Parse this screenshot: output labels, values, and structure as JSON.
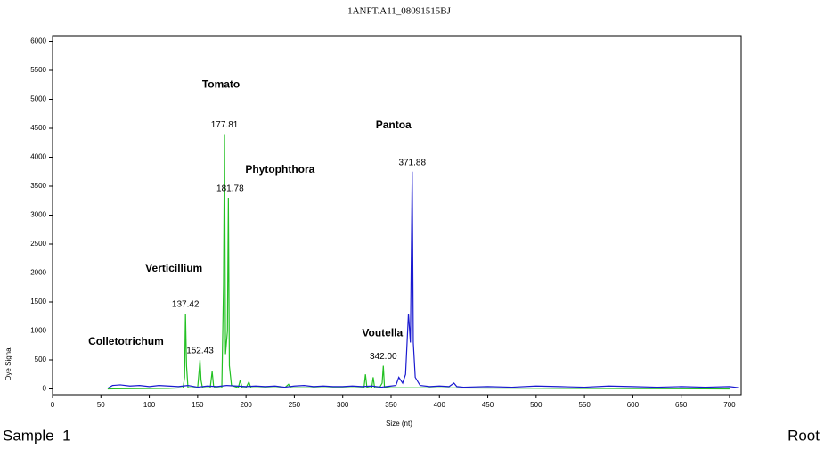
{
  "chart_data": {
    "type": "line",
    "title": "1ANFT.A11_08091515BJ",
    "xlabel": "Size (nt)",
    "ylabel": "Dye Signal",
    "xlim": [
      0,
      712
    ],
    "ylim": [
      -100,
      6100
    ],
    "xticks": [
      0,
      50,
      100,
      150,
      200,
      250,
      300,
      350,
      400,
      450,
      500,
      550,
      600,
      650,
      700
    ],
    "yticks": [
      0,
      500,
      1000,
      1500,
      2000,
      2500,
      3000,
      3500,
      4000,
      4500,
      5000,
      5500,
      6000
    ],
    "series": [
      {
        "color": "#22c022",
        "x": [
          57,
          120,
          135,
          136.5,
          137.42,
          138.5,
          140,
          150,
          151.5,
          152.43,
          153.5,
          155,
          163,
          165,
          166.5,
          168,
          175,
          176.8,
          177.81,
          178.8,
          180.8,
          181.78,
          182.8,
          185,
          192,
          194,
          196,
          200,
          203,
          205,
          207,
          240,
          244,
          246,
          248,
          300,
          320,
          322,
          323.5,
          325,
          328,
          330,
          331.5,
          333,
          338,
          340.8,
          342,
          343.2,
          350,
          360,
          700
        ],
        "values": [
          0,
          10,
          20,
          200,
          1300,
          400,
          20,
          20,
          300,
          500,
          150,
          20,
          20,
          300,
          50,
          20,
          20,
          1800,
          4400,
          600,
          1000,
          3300,
          400,
          60,
          20,
          150,
          20,
          20,
          120,
          20,
          20,
          20,
          80,
          20,
          20,
          20,
          20,
          20,
          250,
          30,
          20,
          20,
          200,
          20,
          20,
          100,
          400,
          30,
          20,
          20,
          0
        ]
      },
      {
        "color": "#1a1ad0",
        "x": [
          57,
          62,
          70,
          80,
          90,
          100,
          110,
          120,
          130,
          140,
          150,
          160,
          170,
          180,
          190,
          200,
          210,
          220,
          230,
          240,
          250,
          260,
          270,
          280,
          290,
          300,
          310,
          320,
          330,
          340,
          345,
          350,
          355,
          358,
          362,
          365,
          368,
          370,
          371.88,
          373,
          375,
          380,
          390,
          400,
          410,
          415,
          418,
          425,
          450,
          475,
          500,
          525,
          550,
          575,
          600,
          625,
          650,
          675,
          700,
          710
        ],
        "values": [
          10,
          60,
          70,
          50,
          60,
          40,
          60,
          50,
          40,
          60,
          30,
          50,
          40,
          60,
          50,
          40,
          50,
          40,
          50,
          30,
          50,
          60,
          40,
          50,
          40,
          40,
          50,
          40,
          50,
          30,
          40,
          50,
          60,
          200,
          100,
          250,
          1300,
          800,
          3750,
          800,
          200,
          60,
          40,
          50,
          40,
          100,
          40,
          30,
          40,
          30,
          50,
          40,
          30,
          50,
          40,
          30,
          40,
          30,
          40,
          20
        ]
      }
    ],
    "peaks": [
      {
        "name": "Verticillium",
        "size": 137.42,
        "height": 1300
      },
      {
        "name": "Colletotrichum",
        "size": 152.43,
        "height": 500
      },
      {
        "name": "Tomato",
        "size": 177.81,
        "height": 4400
      },
      {
        "name": "Phytophthora",
        "size": 181.78,
        "height": 3300
      },
      {
        "name": "Voutella",
        "size": {
          "value": 342,
          "label": "342.00"
        },
        "height": 400
      },
      {
        "name": "Pantoa",
        "size": 371.88,
        "height": 3750
      }
    ]
  },
  "footer": {
    "left": "Sample  1",
    "right": "Root"
  }
}
